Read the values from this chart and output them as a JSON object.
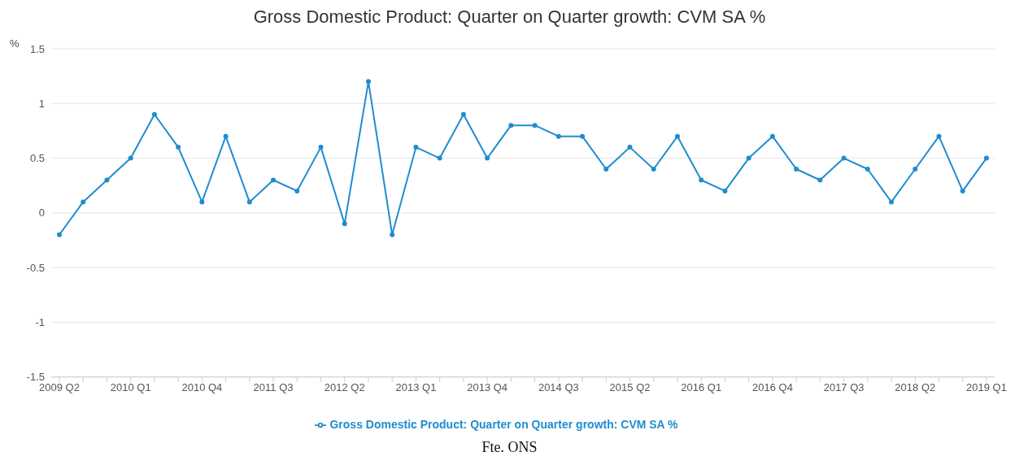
{
  "chart_data": {
    "type": "line",
    "title": "Gross Domestic Product: Quarter on Quarter growth: CVM SA %",
    "ylabel": "%",
    "categories": [
      "2009 Q2",
      null,
      null,
      "2010 Q1",
      null,
      null,
      "2010 Q4",
      null,
      null,
      "2011 Q3",
      null,
      null,
      "2012 Q2",
      null,
      null,
      "2013 Q1",
      null,
      null,
      "2013 Q4",
      null,
      null,
      "2014 Q3",
      null,
      null,
      "2015 Q2",
      null,
      null,
      "2016 Q1",
      null,
      null,
      "2016 Q4",
      null,
      null,
      "2017 Q3",
      null,
      null,
      "2018 Q2",
      null,
      null,
      "2019 Q1"
    ],
    "series": [
      {
        "name": "Gross Domestic Product: Quarter on Quarter growth: CVM SA %",
        "color": "#1f8ccf",
        "values": [
          -0.2,
          0.1,
          0.3,
          0.5,
          0.9,
          0.6,
          0.1,
          0.7,
          0.1,
          0.3,
          0.2,
          0.6,
          -0.1,
          1.2,
          -0.2,
          0.6,
          0.5,
          0.9,
          0.5,
          0.8,
          0.8,
          0.7,
          0.7,
          0.4,
          0.6,
          0.4,
          0.7,
          0.3,
          0.2,
          0.5,
          0.7,
          0.4,
          0.3,
          0.5,
          0.4,
          0.1,
          0.4,
          0.7,
          0.2,
          0.5
        ]
      }
    ],
    "ylim": [
      -1.5,
      1.5
    ],
    "yticks": [
      -1.5,
      -1,
      -0.5,
      0,
      0.5,
      1,
      1.5
    ],
    "grid": "y",
    "legend": "bottom",
    "marker": "circle",
    "line_style": "solid",
    "annotations": [
      "Fte. ONS"
    ]
  }
}
